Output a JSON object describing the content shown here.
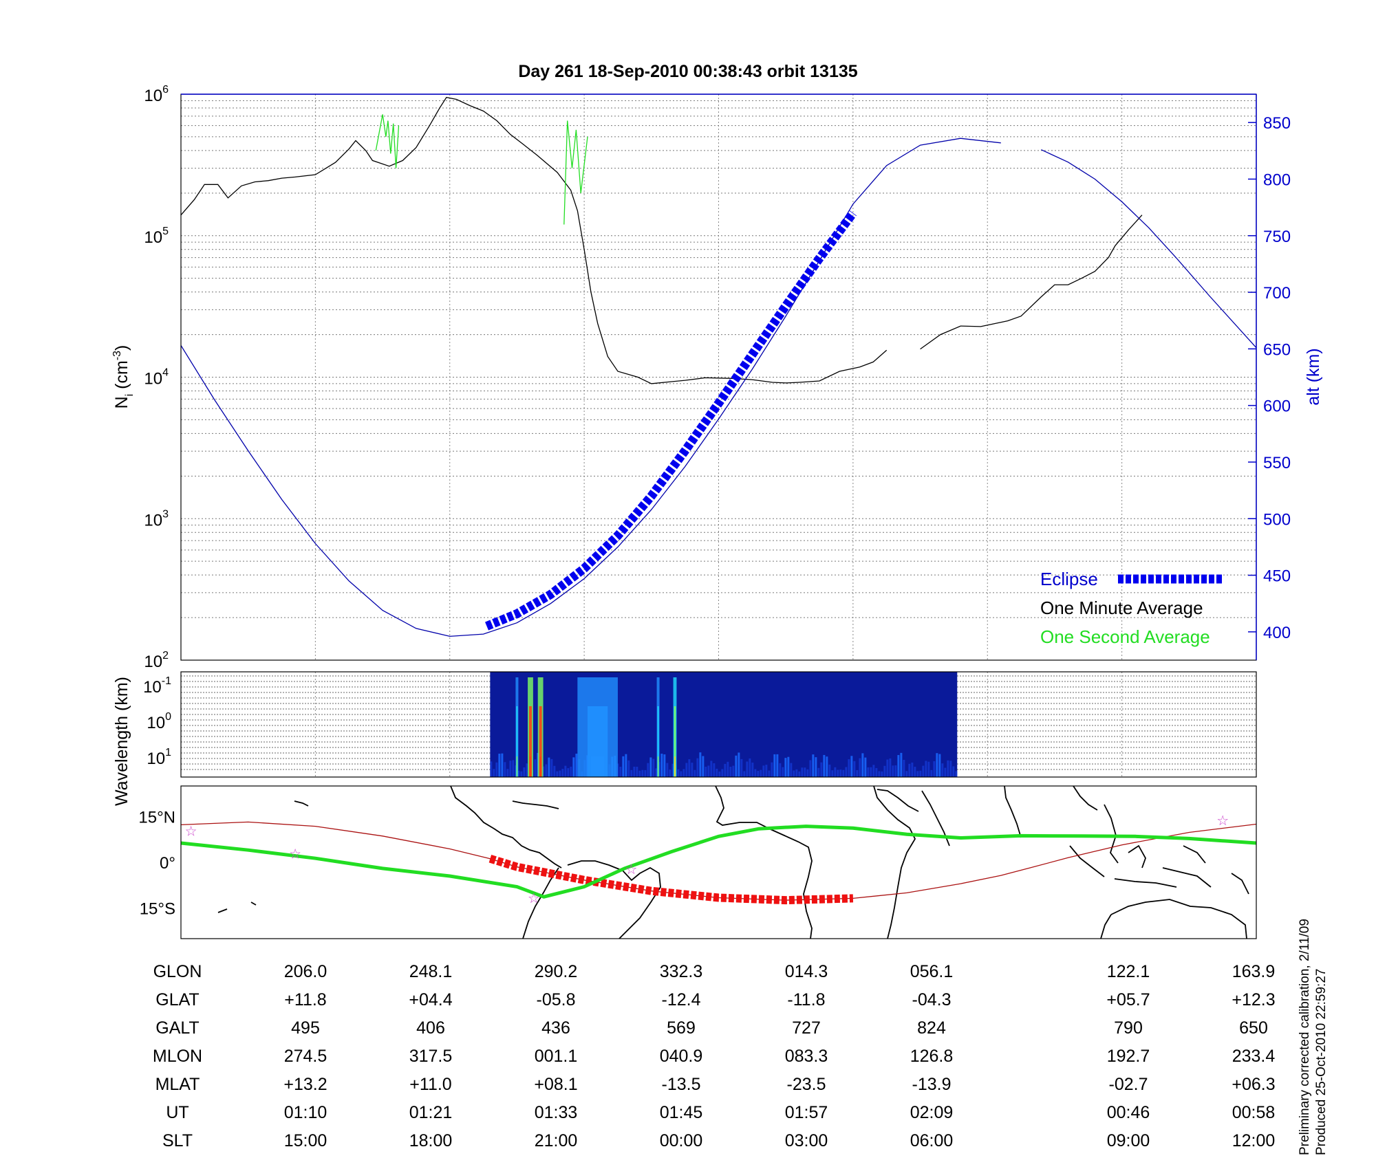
{
  "title": "Day 261  18-Sep-2010 00:38:43   orbit 13135",
  "footnote": {
    "line1": "Preliminary corrected calibration, 2/11/09",
    "line2": "Produced 25-Oct-2010 22:59:27"
  },
  "colors": {
    "alt_line": "#0000aa",
    "eclipse": "#0000ee",
    "one_minute": "#000000",
    "one_second": "#22dd22",
    "ground_track_eclipse": "#ee1111",
    "magnetic_track": "#22dd22",
    "stars": "#cc44cc"
  },
  "chart_data": [
    {
      "type": "line",
      "panel": "ion density and altitude",
      "x_tick_labels": [
        "01:10",
        "01:21",
        "01:33",
        "01:45",
        "01:57",
        "02:09",
        "00:46",
        "00:58"
      ],
      "y_left": {
        "label_main": "N",
        "label_sub": "i",
        "label_unit_open": " (cm",
        "label_unit_exp": "-3",
        "label_unit_close": ")",
        "scale": "log",
        "range": [
          100,
          1000000
        ],
        "tick_base": "10",
        "tick_exponents": [
          "2",
          "3",
          "4",
          "5",
          "6"
        ]
      },
      "y_right": {
        "label": "alt (km)",
        "range": [
          375,
          875
        ],
        "ticks": [
          "400",
          "450",
          "500",
          "550",
          "600",
          "650",
          "700",
          "750",
          "800",
          "850"
        ]
      },
      "grid": "on",
      "legend": {
        "placement": "bottom-right",
        "entries": [
          "Eclipse",
          "One Minute Average",
          "One Second Average"
        ]
      },
      "series": [
        {
          "name": "One Minute Average",
          "style": "thin line",
          "segments": [
            [
              [
                0.0,
                140000
              ],
              [
                0.2,
                180000
              ],
              [
                0.35,
                230000
              ],
              [
                0.55,
                230000
              ],
              [
                0.7,
                185000
              ],
              [
                0.9,
                225000
              ],
              [
                1.1,
                240000
              ],
              [
                1.3,
                245000
              ],
              [
                1.5,
                255000
              ],
              [
                1.7,
                260000
              ],
              [
                2.0,
                270000
              ],
              [
                2.3,
                330000
              ],
              [
                2.5,
                410000
              ],
              [
                2.6,
                470000
              ],
              [
                2.75,
                400000
              ],
              [
                2.85,
                340000
              ],
              [
                3.1,
                310000
              ],
              [
                3.3,
                340000
              ],
              [
                3.5,
                420000
              ],
              [
                3.7,
                600000
              ],
              [
                3.85,
                800000
              ],
              [
                3.95,
                950000
              ],
              [
                4.1,
                920000
              ],
              [
                4.3,
                830000
              ],
              [
                4.5,
                760000
              ],
              [
                4.7,
                650000
              ],
              [
                4.9,
                520000
              ],
              [
                5.1,
                440000
              ],
              [
                5.3,
                370000
              ],
              [
                5.6,
                280000
              ],
              [
                5.8,
                210000
              ],
              [
                5.9,
                150000
              ],
              [
                6.0,
                80000
              ],
              [
                6.1,
                40000
              ],
              [
                6.2,
                24000
              ],
              [
                6.35,
                14000
              ],
              [
                6.5,
                11000
              ],
              [
                6.8,
                10000
              ],
              [
                7.0,
                9000
              ],
              [
                7.3,
                9300
              ],
              [
                7.5,
                9500
              ],
              [
                7.8,
                9900
              ],
              [
                8.2,
                9800
              ],
              [
                8.5,
                9600
              ],
              [
                8.8,
                9200
              ],
              [
                9.0,
                9100
              ],
              [
                9.2,
                9200
              ],
              [
                9.5,
                9400
              ],
              [
                9.8,
                11000
              ],
              [
                10.1,
                11800
              ],
              [
                10.3,
                12800
              ],
              [
                10.5,
                15500
              ]
            ],
            [
              [
                11.0,
                15800
              ],
              [
                11.3,
                20000
              ],
              [
                11.6,
                23000
              ],
              [
                11.9,
                22800
              ],
              [
                12.3,
                25000
              ],
              [
                12.5,
                27000
              ],
              [
                12.8,
                37000
              ],
              [
                13.0,
                45000
              ],
              [
                13.2,
                45000
              ],
              [
                13.4,
                50000
              ],
              [
                13.6,
                56000
              ],
              [
                13.8,
                70000
              ],
              [
                13.9,
                85000
              ],
              [
                14.1,
                110000
              ],
              [
                14.3,
                140000
              ]
            ]
          ]
        },
        {
          "name": "One Second Average",
          "style": "thin line with spikes",
          "segments": [
            [
              [
                2.9,
                400000
              ],
              [
                3.0,
                720000
              ],
              [
                3.05,
                500000
              ],
              [
                3.08,
                650000
              ],
              [
                3.12,
                380000
              ],
              [
                3.16,
                620000
              ],
              [
                3.2,
                300000
              ],
              [
                3.24,
                600000
              ]
            ],
            [
              [
                5.7,
                120000
              ],
              [
                5.75,
                650000
              ],
              [
                5.82,
                300000
              ],
              [
                5.88,
                560000
              ],
              [
                5.95,
                200000
              ],
              [
                6.05,
                500000
              ]
            ]
          ]
        },
        {
          "name": "Altitude",
          "axis": "right",
          "style": "thin line",
          "segments": [
            [
              [
                0.0,
                653
              ],
              [
                0.5,
                605
              ],
              [
                1.0,
                560
              ],
              [
                1.5,
                517
              ],
              [
                2.0,
                478
              ],
              [
                2.5,
                445
              ],
              [
                3.0,
                419
              ],
              [
                3.5,
                403
              ],
              [
                4.0,
                396
              ],
              [
                4.5,
                398
              ],
              [
                5.0,
                408
              ],
              [
                5.5,
                425
              ],
              [
                6.0,
                447
              ],
              [
                6.5,
                475
              ],
              [
                7.0,
                508
              ],
              [
                7.5,
                546
              ],
              [
                8.0,
                588
              ],
              [
                8.5,
                632
              ],
              [
                9.0,
                679
              ],
              [
                9.5,
                728
              ],
              [
                10.0,
                778
              ],
              [
                10.5,
                812
              ],
              [
                11.0,
                830
              ],
              [
                11.6,
                836
              ],
              [
                12.2,
                832
              ]
            ],
            [
              [
                12.8,
                826
              ],
              [
                13.2,
                815
              ],
              [
                13.6,
                800
              ],
              [
                14.0,
                780
              ],
              [
                14.4,
                757
              ],
              [
                14.8,
                731
              ],
              [
                15.3,
                697
              ],
              [
                16.0,
                651
              ]
            ]
          ]
        },
        {
          "name": "Eclipse",
          "axis": "right",
          "style": "thick dashed",
          "segments": [
            [
              [
                4.55,
                405
              ],
              [
                5.0,
                416
              ],
              [
                5.5,
                433
              ],
              [
                6.0,
                456
              ],
              [
                6.5,
                485
              ],
              [
                7.0,
                520
              ],
              [
                7.5,
                560
              ],
              [
                8.0,
                602
              ],
              [
                8.5,
                645
              ],
              [
                9.0,
                688
              ],
              [
                9.5,
                730
              ],
              [
                10.0,
                770
              ]
            ]
          ]
        }
      ]
    },
    {
      "type": "heatmap",
      "panel": "wavelength spectrogram",
      "y_label": "Wavelength (km)",
      "y_scale": "log",
      "tick_base": "10",
      "tick_exponents": [
        "-1",
        "0",
        "1"
      ],
      "data_span_x": [
        4.6,
        11.55
      ],
      "colormap": "jet",
      "intensity_features": [
        {
          "x": 5.0,
          "width": 0.04,
          "level": 0.55
        },
        {
          "x": 5.2,
          "width": 0.08,
          "level": 0.95
        },
        {
          "x": 5.35,
          "width": 0.08,
          "level": 0.95
        },
        {
          "x": 6.2,
          "width": 0.6,
          "level": 0.35
        },
        {
          "x": 7.1,
          "width": 0.03,
          "level": 0.6
        },
        {
          "x": 7.35,
          "width": 0.05,
          "level": 0.7
        }
      ]
    },
    {
      "type": "map",
      "panel": "ground track",
      "lat_ticks": [
        "15°N",
        "0°",
        "15°S"
      ],
      "lon_range": [
        -160,
        200
      ],
      "lat_range": [
        -25,
        25
      ],
      "ground_track": [
        [
          0.0,
          12.3
        ],
        [
          1.0,
          13.2
        ],
        [
          2.0,
          11.8
        ],
        [
          3.0,
          8.6
        ],
        [
          4.0,
          4.4
        ],
        [
          4.6,
          1.2
        ],
        [
          5.0,
          -1.5
        ],
        [
          6.0,
          -5.8
        ],
        [
          7.0,
          -9.4
        ],
        [
          8.0,
          -11.6
        ],
        [
          9.0,
          -12.4
        ],
        [
          10.0,
          -11.8
        ],
        [
          10.8,
          -10.0
        ],
        [
          11.6,
          -7.0
        ],
        [
          12.2,
          -4.3
        ],
        [
          12.6,
          -2.0
        ],
        [
          13.2,
          1.5
        ],
        [
          14.0,
          5.7
        ],
        [
          15.0,
          9.8
        ],
        [
          16.0,
          12.5
        ]
      ],
      "eclipse_track_span": [
        4.6,
        10.0
      ],
      "magnetic_track": [
        [
          0.0,
          6.3
        ],
        [
          1.0,
          4.0
        ],
        [
          2.0,
          1.3
        ],
        [
          3.0,
          -2.0
        ],
        [
          4.0,
          -4.5
        ],
        [
          5.0,
          -8.0
        ],
        [
          5.4,
          -11.3
        ],
        [
          6.0,
          -8.0
        ],
        [
          6.6,
          -2.0
        ],
        [
          7.3,
          3.5
        ],
        [
          8.0,
          8.5
        ],
        [
          8.6,
          11.0
        ],
        [
          9.3,
          11.8
        ],
        [
          10.0,
          11.2
        ],
        [
          10.8,
          9.2
        ],
        [
          11.6,
          8.0
        ],
        [
          12.5,
          8.7
        ],
        [
          13.4,
          8.6
        ],
        [
          14.2,
          8.5
        ],
        [
          15.0,
          7.8
        ],
        [
          16.0,
          6.3
        ]
      ],
      "stars": [
        [
          0.15,
          10.5
        ],
        [
          1.7,
          3.0
        ],
        [
          5.25,
          -11.5
        ],
        [
          6.7,
          -2.0
        ],
        [
          15.5,
          14.0
        ]
      ]
    }
  ],
  "table": {
    "rows": [
      {
        "label": "GLON",
        "values": [
          "206.0",
          "248.1",
          "290.2",
          "332.3",
          "014.3",
          "056.1",
          "122.1",
          "163.9"
        ]
      },
      {
        "label": "GLAT",
        "values": [
          "+11.8",
          "+04.4",
          "-05.8",
          "-12.4",
          "-11.8",
          "-04.3",
          "+05.7",
          "+12.3"
        ]
      },
      {
        "label": "GALT",
        "values": [
          "495",
          "406",
          "436",
          "569",
          "727",
          "824",
          "790",
          "650"
        ]
      },
      {
        "label": "MLON",
        "values": [
          "274.5",
          "317.5",
          "001.1",
          "040.9",
          "083.3",
          "126.8",
          "192.7",
          "233.4"
        ]
      },
      {
        "label": "MLAT",
        "values": [
          "+13.2",
          "+11.0",
          "+08.1",
          "-13.5",
          "-23.5",
          "-13.9",
          "-02.7",
          "+06.3"
        ]
      },
      {
        "label": "UT",
        "values": [
          "01:10",
          "01:21",
          "01:33",
          "01:45",
          "01:57",
          "02:09",
          "00:46",
          "00:58"
        ]
      },
      {
        "label": "SLT",
        "values": [
          "15:00",
          "18:00",
          "21:00",
          "00:00",
          "03:00",
          "06:00",
          "09:00",
          "12:00"
        ]
      }
    ]
  }
}
